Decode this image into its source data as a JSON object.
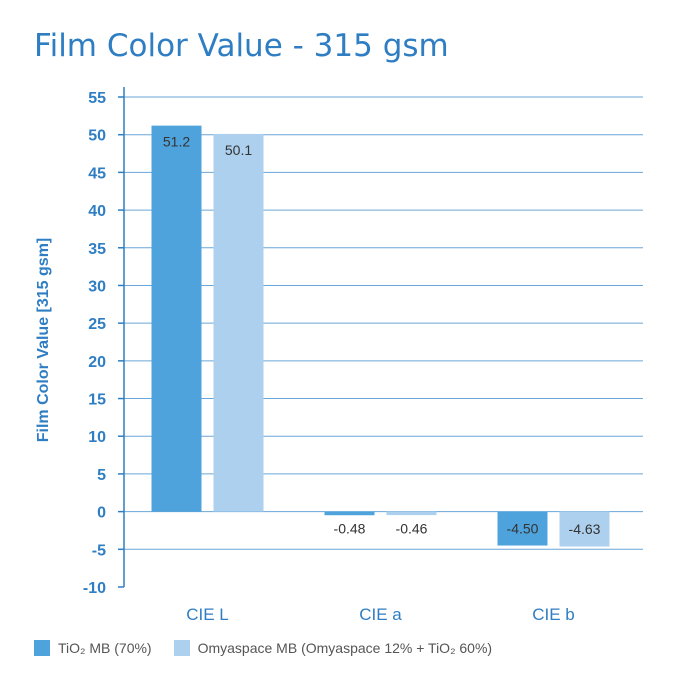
{
  "chart_data": {
    "type": "bar",
    "title": "Film Color Value - 315 gsm",
    "ylabel": "Film Color Value [315 gsm]",
    "xlabel": "",
    "categories": [
      "CIE L",
      "CIE a",
      "CIE b"
    ],
    "ylim": [
      -10,
      55
    ],
    "yticks": [
      55,
      50,
      45,
      40,
      35,
      30,
      25,
      20,
      15,
      10,
      5,
      0,
      -5,
      -10
    ],
    "grid": true,
    "legend_position": "bottom-left",
    "series": [
      {
        "name": "TiO₂ MB (70%)",
        "values": [
          51.2,
          -0.48,
          -4.5
        ],
        "labels": [
          "51.2",
          "-0.48",
          "-4.50"
        ],
        "color": "#4fa3dc"
      },
      {
        "name": "Omyaspace MB (Omyaspace 12% + TiO₂ 60%)",
        "values": [
          50.1,
          -0.46,
          -4.63
        ],
        "labels": [
          "50.1",
          "-0.46",
          "-4.63"
        ],
        "color": "#acd0ee"
      }
    ]
  },
  "colors": {
    "axis": "#2f7ec3",
    "grid": "#6aa6d8",
    "text": "#2f7ec3"
  }
}
